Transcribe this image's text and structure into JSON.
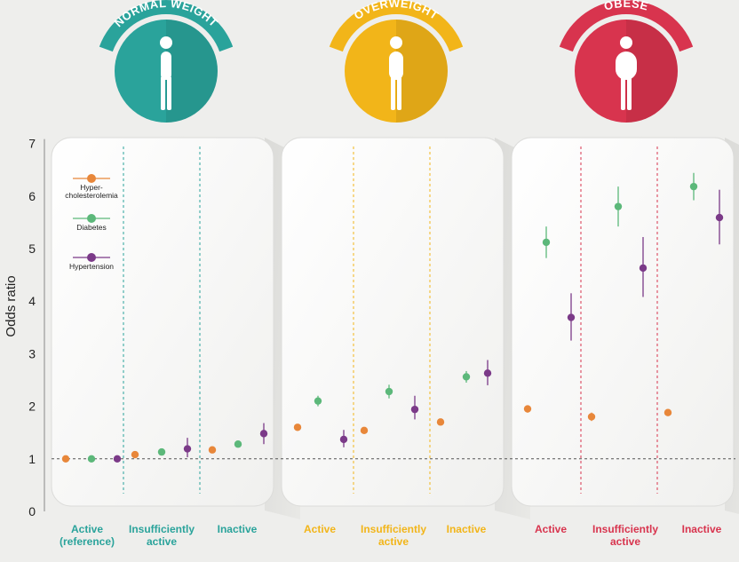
{
  "chart_data": {
    "type": "scatter",
    "ylabel": "Odds ratio",
    "ylim": [
      0,
      7
    ],
    "yticks": [
      0,
      1,
      2,
      3,
      4,
      5,
      6,
      7
    ],
    "reference_line": 1,
    "grid": false,
    "legend_position": "top-left",
    "groups": [
      {
        "badge": "NORMAL WEIGHT",
        "color": "#2aa39b",
        "categories": [
          {
            "line1": "Active",
            "line2": "(reference)"
          },
          {
            "line1": "Insufficiently",
            "line2": "active"
          },
          {
            "line1": "Inactive",
            "line2": ""
          }
        ]
      },
      {
        "badge": "OVERWEIGHT",
        "color": "#f2b519",
        "categories": [
          {
            "line1": "Active",
            "line2": ""
          },
          {
            "line1": "Insufficiently",
            "line2": "active"
          },
          {
            "line1": "Inactive",
            "line2": ""
          }
        ]
      },
      {
        "badge": "OBESE",
        "color": "#d8344e",
        "categories": [
          {
            "line1": "Active",
            "line2": ""
          },
          {
            "line1": "Insufficiently",
            "line2": "active"
          },
          {
            "line1": "Inactive",
            "line2": ""
          }
        ]
      }
    ],
    "series": [
      {
        "name": "Hyper-\ncholesterolemia",
        "color": "#e8873a",
        "values": [
          1.0,
          1.08,
          1.17,
          1.6,
          1.54,
          1.7,
          1.95,
          1.8,
          1.88
        ],
        "ci": [
          [
            1.0,
            1.0
          ],
          [
            1.05,
            1.11
          ],
          [
            1.13,
            1.21
          ],
          [
            1.56,
            1.64
          ],
          [
            1.5,
            1.58
          ],
          [
            1.65,
            1.75
          ],
          [
            1.88,
            2.02
          ],
          [
            1.72,
            1.88
          ],
          [
            1.82,
            1.94
          ]
        ]
      },
      {
        "name": "Diabetes",
        "color": "#5cb87a",
        "values": [
          1.0,
          1.13,
          1.28,
          2.1,
          2.28,
          2.56,
          5.12,
          5.8,
          6.18
        ],
        "ci": [
          [
            1.0,
            1.0
          ],
          [
            1.08,
            1.18
          ],
          [
            1.22,
            1.34
          ],
          [
            2.0,
            2.2
          ],
          [
            2.15,
            2.41
          ],
          [
            2.45,
            2.67
          ],
          [
            4.82,
            5.42
          ],
          [
            5.42,
            6.18
          ],
          [
            5.92,
            6.44
          ]
        ]
      },
      {
        "name": "Hypertension",
        "color": "#7b3a88",
        "values": [
          1.0,
          1.19,
          1.48,
          1.37,
          1.94,
          2.63,
          3.69,
          4.63,
          5.59
        ],
        "ci": [
          [
            1.0,
            1.0
          ],
          [
            1.03,
            1.4
          ],
          [
            1.28,
            1.68
          ],
          [
            1.22,
            1.55
          ],
          [
            1.75,
            2.2
          ],
          [
            2.4,
            2.88
          ],
          [
            3.25,
            4.15
          ],
          [
            4.08,
            5.22
          ],
          [
            5.08,
            6.12
          ]
        ]
      }
    ]
  }
}
